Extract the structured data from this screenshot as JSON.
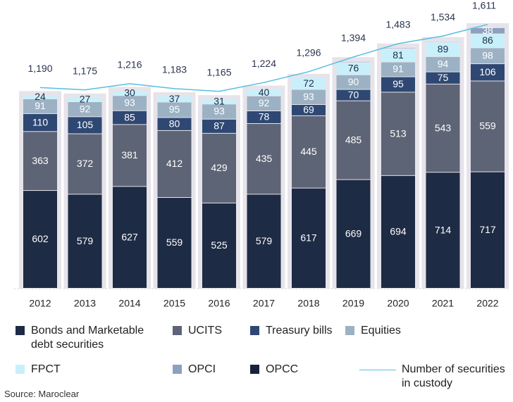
{
  "chart_data": {
    "type": "bar",
    "categories": [
      "2012",
      "2013",
      "2014",
      "2015",
      "2016",
      "2017",
      "2018",
      "2019",
      "2020",
      "2021",
      "2022"
    ],
    "series": [
      {
        "name": "Bonds and Marketable debt securities",
        "color": "#1e2b45",
        "values": [
          602,
          579,
          627,
          559,
          525,
          579,
          617,
          669,
          694,
          714,
          717
        ]
      },
      {
        "name": "UCITS",
        "color": "#5d6475",
        "values": [
          363,
          372,
          381,
          412,
          429,
          435,
          445,
          485,
          513,
          543,
          559
        ]
      },
      {
        "name": "Treasury bills",
        "color": "#2f4873",
        "values": [
          110,
          105,
          85,
          80,
          87,
          78,
          69,
          70,
          95,
          75,
          106
        ]
      },
      {
        "name": "Equities",
        "color": "#9cb2c4",
        "values": [
          91,
          92,
          93,
          95,
          93,
          92,
          93,
          90,
          91,
          94,
          98
        ]
      },
      {
        "name": "FPCT",
        "color": "#c8f0fb",
        "values": [
          24,
          27,
          30,
          37,
          31,
          40,
          72,
          76,
          81,
          89,
          86
        ]
      },
      {
        "name": "OPCI",
        "color": "#8da0c0",
        "values": [
          0,
          0,
          0,
          0,
          0,
          0,
          0,
          6,
          6,
          5,
          38
        ]
      },
      {
        "name": "OPCC",
        "color": "#16233a",
        "values": [
          0,
          0,
          0,
          0,
          0,
          0,
          0,
          3,
          3,
          3,
          4
        ]
      },
      {
        "name": "Number of securities in custody",
        "color": "#55bfe3",
        "type": "line",
        "axis": "y2",
        "values": [
          1190,
          1175,
          1216,
          1183,
          1165,
          1224,
          1296,
          1394,
          1483,
          1534,
          1611
        ],
        "value_labels": [
          "1,190",
          "1,175",
          "1,216",
          "1,183",
          "1,165",
          "1,224",
          "1,296",
          "1,394",
          "1,483",
          "1,534",
          "1,611"
        ]
      }
    ],
    "ylim": [
      0,
      1690
    ],
    "y2lim": [
      -150,
      1680
    ],
    "source": "Source: Maroclear"
  }
}
